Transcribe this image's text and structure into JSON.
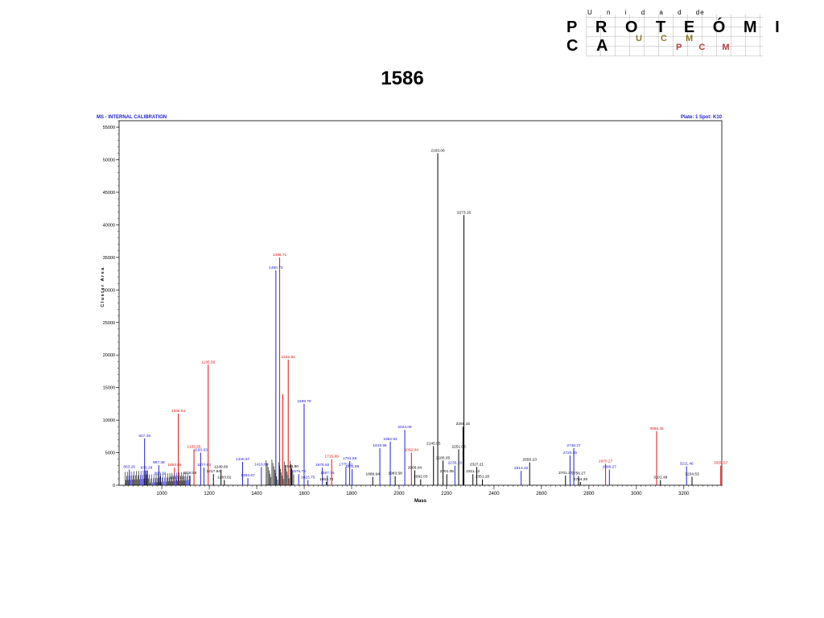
{
  "logo": {
    "top_line": [
      "U",
      "n",
      "i",
      "d",
      "a",
      "d",
      "de"
    ],
    "main_letters": [
      "P",
      "R",
      "O",
      "T",
      "E",
      "Ó",
      "M",
      "I",
      "C",
      "A"
    ],
    "ucm_letters": [
      "U",
      "C",
      "M"
    ],
    "pcm_letters": [
      "P",
      "C",
      "M"
    ]
  },
  "page_title": "1586",
  "chart_data": {
    "type": "bar",
    "title": "MS - INTERNAL CALIBRATION",
    "subtitle": "Plate: 1 Spot: K10",
    "xlabel": "Mass",
    "ylabel": "Cluster Area",
    "xlim": [
      820,
      3360
    ],
    "ylim": [
      0,
      56000
    ],
    "x_ticks": [
      1000,
      1200,
      1400,
      1600,
      1800,
      2000,
      2200,
      2400,
      2600,
      2800,
      3000,
      3200
    ],
    "y_ticks": [
      0,
      5000,
      10000,
      15000,
      20000,
      25000,
      30000,
      35000,
      40000,
      45000,
      50000,
      55000
    ],
    "colors": {
      "black": "#000000",
      "blue": "#2020d0",
      "red": "#e01010"
    },
    "peaks": [
      {
        "x": 863.26,
        "y": 2400,
        "color": "blue",
        "label": "863.26"
      },
      {
        "x": 927.48,
        "y": 7200,
        "color": "blue",
        "label": "927.48"
      },
      {
        "x": 935.28,
        "y": 2300,
        "color": "blue",
        "label": "935.28"
      },
      {
        "x": 987.38,
        "y": 3100,
        "color": "blue",
        "label": "987.38"
      },
      {
        "x": 993.32,
        "y": 1400,
        "color": "blue",
        "label": "993.32"
      },
      {
        "x": 1053.55,
        "y": 2700,
        "color": "red",
        "label": "1053.55"
      },
      {
        "x": 1069.54,
        "y": 11000,
        "color": "red",
        "label": "1069.54"
      },
      {
        "x": 1063.31,
        "y": 800,
        "color": "black",
        "label": "1063.31"
      },
      {
        "x": 1118.55,
        "y": 1500,
        "color": "black",
        "label": "1118.55"
      },
      {
        "x": 1135.55,
        "y": 5500,
        "color": "red",
        "label": "1135.55"
      },
      {
        "x": 1163.63,
        "y": 5000,
        "color": "blue",
        "label": "1163.63"
      },
      {
        "x": 1177.63,
        "y": 2700,
        "color": "blue",
        "label": "1177.63"
      },
      {
        "x": 1195.59,
        "y": 18500,
        "color": "red",
        "label": "1195.59"
      },
      {
        "x": 1217.64,
        "y": 1700,
        "color": "black",
        "label": "1217.64"
      },
      {
        "x": 1249.6,
        "y": 2400,
        "color": "black",
        "label": "1249.60"
      },
      {
        "x": 1263.62,
        "y": 800,
        "color": "black",
        "label": "1263.62"
      },
      {
        "x": 1340.67,
        "y": 3600,
        "color": "blue",
        "label": "1340.67"
      },
      {
        "x": 1362.67,
        "y": 1100,
        "color": "blue",
        "label": "1362.67"
      },
      {
        "x": 1419.69,
        "y": 2800,
        "color": "blue",
        "label": "1419.69"
      },
      {
        "x": 1480.7,
        "y": 33000,
        "color": "blue",
        "label": "1480.70"
      },
      {
        "x": 1496.71,
        "y": 35000,
        "color": "red",
        "label": "1496.71"
      },
      {
        "x": 1510.0,
        "y": 14000,
        "color": "red",
        "label": ""
      },
      {
        "x": 1532.82,
        "y": 19300,
        "color": "red",
        "label": "1532.82"
      },
      {
        "x": 1546.8,
        "y": 2500,
        "color": "black",
        "label": "1546.80"
      },
      {
        "x": 1576.78,
        "y": 1700,
        "color": "blue",
        "label": "1576.78"
      },
      {
        "x": 1599.79,
        "y": 12500,
        "color": "blue",
        "label": "1599.79"
      },
      {
        "x": 1615.75,
        "y": 800,
        "color": "blue",
        "label": "1615.75"
      },
      {
        "x": 1676.82,
        "y": 2700,
        "color": "blue",
        "label": "1676.82"
      },
      {
        "x": 1697.75,
        "y": 1500,
        "color": "blue",
        "label": "1697.75"
      },
      {
        "x": 1693.74,
        "y": 500,
        "color": "black",
        "label": "1693.74"
      },
      {
        "x": 1715.89,
        "y": 4000,
        "color": "red",
        "label": "1715.89"
      },
      {
        "x": 1775.81,
        "y": 2800,
        "color": "blue",
        "label": "1775.81"
      },
      {
        "x": 1791.86,
        "y": 3700,
        "color": "blue",
        "label": "1791.86"
      },
      {
        "x": 1801.98,
        "y": 2500,
        "color": "blue",
        "label": "1801.98"
      },
      {
        "x": 1888.94,
        "y": 1300,
        "color": "black",
        "label": "1888.94"
      },
      {
        "x": 1918.96,
        "y": 5700,
        "color": "blue",
        "label": "1918.96"
      },
      {
        "x": 1962.92,
        "y": 6700,
        "color": "blue",
        "label": "1962.92"
      },
      {
        "x": 1983.58,
        "y": 1400,
        "color": "black",
        "label": "1983.58"
      },
      {
        "x": 2024.09,
        "y": 8500,
        "color": "blue",
        "label": "2024.09"
      },
      {
        "x": 2052.04,
        "y": 5000,
        "color": "red",
        "label": "2052.04"
      },
      {
        "x": 2066.04,
        "y": 2300,
        "color": "black",
        "label": "2066.04"
      },
      {
        "x": 2091.03,
        "y": 900,
        "color": "black",
        "label": "2091.03"
      },
      {
        "x": 2145.05,
        "y": 6000,
        "color": "black",
        "label": "2145.05"
      },
      {
        "x": 2163.06,
        "y": 51000,
        "color": "black",
        "label": "2163.06"
      },
      {
        "x": 2185.05,
        "y": 3800,
        "color": "black",
        "label": "2185.05"
      },
      {
        "x": 2201.05,
        "y": 1700,
        "color": "black",
        "label": "2201.05"
      },
      {
        "x": 2235.19,
        "y": 3000,
        "color": "blue",
        "label": "2235.19"
      },
      {
        "x": 2251.03,
        "y": 5500,
        "color": "black",
        "label": "2251.03"
      },
      {
        "x": 2269.15,
        "y": 9000,
        "color": "black",
        "label": "2269.15"
      },
      {
        "x": 2273.16,
        "y": 41500,
        "color": "black",
        "label": "2273.16"
      },
      {
        "x": 2311.12,
        "y": 1700,
        "color": "black",
        "label": "2311.12"
      },
      {
        "x": 2327.21,
        "y": 2800,
        "color": "black",
        "label": "2327.21"
      },
      {
        "x": 2351.2,
        "y": 900,
        "color": "black",
        "label": "2351.20"
      },
      {
        "x": 2514.32,
        "y": 2200,
        "color": "blue",
        "label": "2514.32"
      },
      {
        "x": 2550.23,
        "y": 3500,
        "color": "black",
        "label": "2550.23"
      },
      {
        "x": 2701.37,
        "y": 1500,
        "color": "black",
        "label": "2701.37"
      },
      {
        "x": 2720.35,
        "y": 4600,
        "color": "blue",
        "label": "2720.35"
      },
      {
        "x": 2736.27,
        "y": 5700,
        "color": "blue",
        "label": "2736.27"
      },
      {
        "x": 2756.27,
        "y": 1400,
        "color": "black",
        "label": "2756.27"
      },
      {
        "x": 2764.28,
        "y": 500,
        "color": "black",
        "label": "2764.28"
      },
      {
        "x": 2870.27,
        "y": 3300,
        "color": "red",
        "label": "2870.27"
      },
      {
        "x": 2886.27,
        "y": 2400,
        "color": "blue",
        "label": "2886.27"
      },
      {
        "x": 3085.45,
        "y": 8300,
        "color": "red",
        "label": "3085.45"
      },
      {
        "x": 3101.49,
        "y": 800,
        "color": "black",
        "label": "3101.49"
      },
      {
        "x": 3211.46,
        "y": 2900,
        "color": "blue",
        "label": "3211.46"
      },
      {
        "x": 3234.53,
        "y": 1300,
        "color": "black",
        "label": "3234.53"
      },
      {
        "x": 3355.57,
        "y": 3000,
        "color": "red",
        "label": "3355.57"
      }
    ]
  }
}
